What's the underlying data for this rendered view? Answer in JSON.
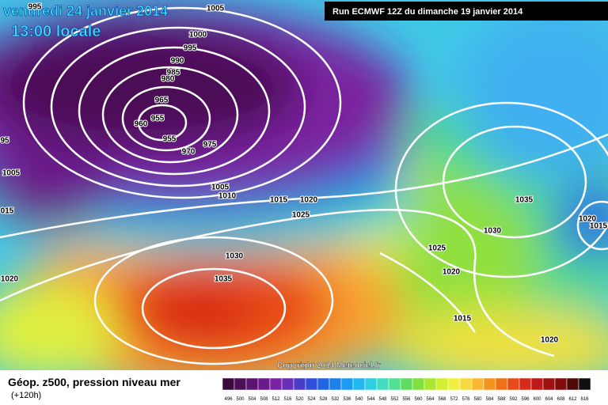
{
  "header": {
    "date": "vendredi 24 janvier 2014",
    "time": "13:00 locale",
    "run": "Run ECMWF 12Z du dimanche 19 janvier 2014"
  },
  "footer": {
    "field": "Géop. z500, pression niveau mer",
    "lead": "(+120h)",
    "copyright": "Copyright 2014 Meteociel.fr"
  },
  "isobar_labels": [
    "995",
    "1005",
    "1000",
    "995",
    "990",
    "985",
    "980",
    "965",
    "955",
    "960",
    "955",
    "970",
    "975",
    "95",
    "1005",
    "015",
    "1005",
    "1010",
    "1015",
    "1020",
    "1025",
    "1030",
    "1035",
    "1020",
    "1035",
    "1030",
    "1025",
    "1020",
    "1015",
    "1020",
    "1020",
    "1015"
  ],
  "colorbar": {
    "values": [
      496,
      500,
      504,
      508,
      512,
      516,
      520,
      524,
      528,
      532,
      536,
      540,
      544,
      548,
      552,
      556,
      560,
      564,
      568,
      572,
      576,
      580,
      584,
      588,
      592,
      596,
      600,
      604,
      608,
      612,
      616
    ],
    "colors": [
      "#3a0a3a",
      "#4b0f55",
      "#5a1470",
      "#6a1a8a",
      "#7a22a0",
      "#6a2fb8",
      "#4a3cc8",
      "#2f4fd8",
      "#1f66e0",
      "#1a80ea",
      "#1a9cf0",
      "#20b8f0",
      "#30cfe0",
      "#40dcc0",
      "#50e090",
      "#60dd60",
      "#80e040",
      "#a8e830",
      "#d0f030",
      "#f0f040",
      "#f8d840",
      "#f8b830",
      "#f49420",
      "#f07018",
      "#e84a18",
      "#d82a18",
      "#c01818",
      "#a01010",
      "#800c0c",
      "#500808",
      "#101010"
    ]
  }
}
